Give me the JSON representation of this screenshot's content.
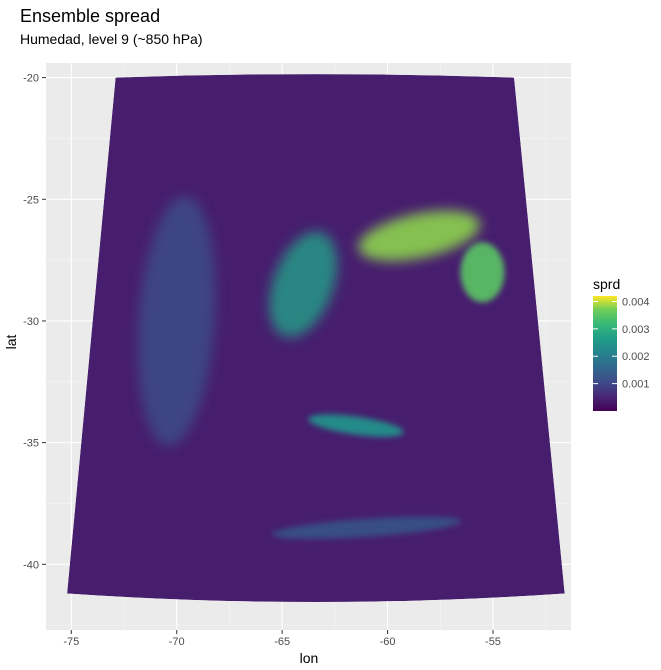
{
  "chart_data": {
    "type": "heatmap",
    "title": "Ensemble spread",
    "subtitle": "Humedad, level 9 (~850 hPa)",
    "xlabel": "lon",
    "ylabel": "lat",
    "xlim": [
      -76.2,
      -51.3
    ],
    "ylim": [
      -42.7,
      -19.4
    ],
    "x_ticks": [
      -75,
      -70,
      -65,
      -60,
      -55
    ],
    "x_tick_labels": [
      "-75",
      "-70",
      "-65",
      "-60",
      "-55"
    ],
    "y_ticks": [
      -20,
      -25,
      -30,
      -35,
      -40
    ],
    "y_tick_labels": [
      "-20",
      "-25",
      "-30",
      "-35",
      "-40"
    ],
    "grid": true,
    "projection": "Lambert conformal (curved domain)",
    "domain_corners": {
      "top_left": [
        -72.9,
        -20.0
      ],
      "top_right": [
        -54.0,
        -20.0
      ],
      "bottom_left": [
        -75.2,
        -41.2
      ],
      "bottom_right": [
        -51.6,
        -41.2
      ]
    },
    "legend": {
      "title": "sprd",
      "position": "right",
      "colormap": "viridis",
      "range": [
        0.0,
        0.0042
      ],
      "ticks": [
        0.001,
        0.002,
        0.003,
        0.004
      ],
      "tick_labels": [
        "0.001",
        "0.002",
        "0.003",
        "0.004"
      ]
    },
    "features": [
      {
        "description": "high-spread band (subtropical moist region)",
        "center": [
          -58.5,
          -26.5
        ],
        "value": 0.0038
      },
      {
        "description": "high-spread band east",
        "center": [
          -55.5,
          -28.0
        ],
        "value": 0.0035
      },
      {
        "description": "moderate spread tongue",
        "center": [
          -64.0,
          -28.5
        ],
        "value": 0.0027
      },
      {
        "description": "curved frontal band",
        "center": [
          -61.5,
          -34.3
        ],
        "value": 0.0024
      },
      {
        "description": "southern streaks",
        "center": [
          -61.0,
          -38.5
        ],
        "value": 0.0015
      },
      {
        "description": "Andes region noisy spread",
        "center": [
          -70.0,
          -30.0
        ],
        "value": 0.0012
      }
    ],
    "background_value": 0.0004
  }
}
